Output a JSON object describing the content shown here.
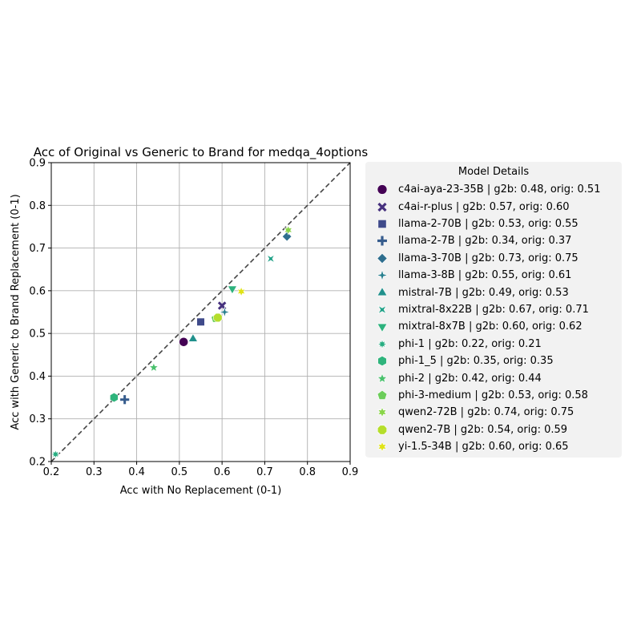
{
  "chart_data": {
    "type": "scatter",
    "title": "Acc of Original vs Generic to Brand for medqa_4options",
    "xlabel": "Acc with No Replacement (0-1)",
    "ylabel": "Acc with Generic to Brand Replacement (0-1)",
    "xlim": [
      0.2,
      0.9
    ],
    "ylim": [
      0.2,
      0.9
    ],
    "xticks": [
      "0.2",
      "0.3",
      "0.4",
      "0.5",
      "0.6",
      "0.7",
      "0.8",
      "0.9"
    ],
    "yticks": [
      "0.2",
      "0.3",
      "0.4",
      "0.5",
      "0.6",
      "0.7",
      "0.8",
      "0.9"
    ],
    "grid": true,
    "reference_line": "y = x (dashed)",
    "legend_title": "Model Details",
    "legend_position": "outside-right",
    "series": [
      {
        "label": "c4ai-aya-23-35B | g2b: 0.48, orig: 0.51",
        "x": 0.51,
        "y": 0.48,
        "marker": "circle",
        "color": "#440154"
      },
      {
        "label": "c4ai-r-plus | g2b: 0.57, orig: 0.60",
        "x": 0.6,
        "y": 0.565,
        "marker": "x",
        "color": "#46317e"
      },
      {
        "label": "llama-2-70B | g2b: 0.53, orig: 0.55",
        "x": 0.55,
        "y": 0.527,
        "marker": "square",
        "color": "#3f4a8a"
      },
      {
        "label": "llama-2-7B | g2b: 0.34, orig: 0.37",
        "x": 0.372,
        "y": 0.345,
        "marker": "plus",
        "color": "#365c8d"
      },
      {
        "label": "llama-3-70B | g2b: 0.73, orig: 0.75",
        "x": 0.752,
        "y": 0.727,
        "marker": "diamond",
        "color": "#2e6e8e"
      },
      {
        "label": "llama-3-8B | g2b: 0.55, orig: 0.61",
        "x": 0.606,
        "y": 0.55,
        "marker": "star4",
        "color": "#277f8e"
      },
      {
        "label": "mistral-7B | g2b: 0.49, orig: 0.53",
        "x": 0.532,
        "y": 0.487,
        "marker": "triangle-up",
        "color": "#21918c"
      },
      {
        "label": "mixtral-8x22B | g2b: 0.67, orig: 0.71",
        "x": 0.714,
        "y": 0.675,
        "marker": "bowtie",
        "color": "#1fa187"
      },
      {
        "label": "mixtral-8x7B | g2b: 0.60, orig: 0.62",
        "x": 0.624,
        "y": 0.605,
        "marker": "triangle-down",
        "color": "#2db27d"
      },
      {
        "label": "phi-1 | g2b: 0.22, orig: 0.21",
        "x": 0.21,
        "y": 0.217,
        "marker": "star8",
        "color": "#27ad81"
      },
      {
        "label": "phi-1_5 | g2b: 0.35, orig: 0.35",
        "x": 0.347,
        "y": 0.35,
        "marker": "hexagon",
        "color": "#2fb47c"
      },
      {
        "label": "phi-2 | g2b: 0.42, orig: 0.44",
        "x": 0.44,
        "y": 0.42,
        "marker": "star5",
        "color": "#4ac16d"
      },
      {
        "label": "phi-3-medium | g2b: 0.53, orig: 0.58",
        "x": 0.585,
        "y": 0.535,
        "marker": "pentagon",
        "color": "#6ccd5a"
      },
      {
        "label": "qwen2-72B | g2b: 0.74, orig: 0.75",
        "x": 0.755,
        "y": 0.742,
        "marker": "star6",
        "color": "#89d548"
      },
      {
        "label": "qwen2-7B | g2b: 0.54, orig: 0.59",
        "x": 0.59,
        "y": 0.537,
        "marker": "octagon",
        "color": "#b5de2b"
      },
      {
        "label": "yi-1.5-34B | g2b: 0.60, orig: 0.65",
        "x": 0.645,
        "y": 0.598,
        "marker": "star6",
        "color": "#e0e318"
      }
    ]
  }
}
